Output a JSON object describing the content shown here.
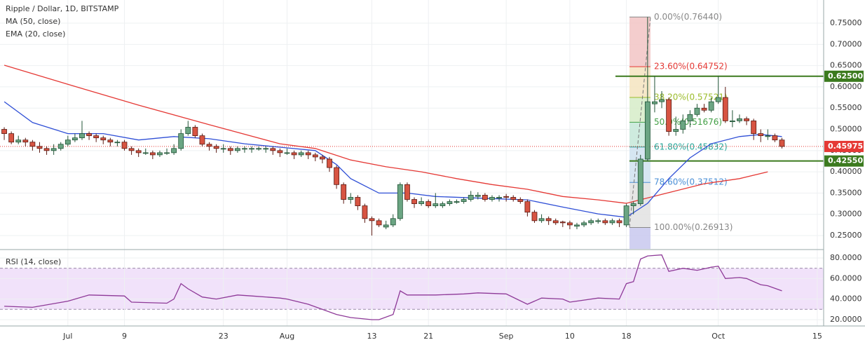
{
  "chart_data": {
    "type": "candlestick",
    "title": "Ripple / Dollar, 1D, BITSTAMP",
    "up_color": "#6ba583",
    "down_color": "#d75442",
    "xlim": [
      -9.6,
      106.9
    ],
    "xticks": [
      {
        "value": 0,
        "label": "Jul"
      },
      {
        "value": 8,
        "label": "9"
      },
      {
        "value": 22,
        "label": "23"
      },
      {
        "value": 31,
        "label": "Aug"
      },
      {
        "value": 43,
        "label": "13"
      },
      {
        "value": 51,
        "label": "21"
      },
      {
        "value": 62,
        "label": "Sep"
      },
      {
        "value": 71,
        "label": "10"
      },
      {
        "value": 79,
        "label": "18"
      },
      {
        "value": 92,
        "label": "Oct"
      },
      {
        "value": 106,
        "label": "15"
      }
    ],
    "ylim": [
      0.2187,
      0.8045
    ],
    "yticks": [
      {
        "value": 0.25,
        "label": "0.25000"
      },
      {
        "value": 0.3,
        "label": "0.30000"
      },
      {
        "value": 0.35,
        "label": "0.35000"
      },
      {
        "value": 0.4,
        "label": "0.40000"
      },
      {
        "value": 0.45,
        "label": "0.45000"
      },
      {
        "value": 0.5,
        "label": "0.50000"
      },
      {
        "value": 0.55,
        "label": "0.55000"
      },
      {
        "value": 0.6,
        "label": "0.60000"
      },
      {
        "value": 0.65,
        "label": "0.65000"
      },
      {
        "value": 0.7,
        "label": "0.70000"
      },
      {
        "value": 0.75,
        "label": "0.75000"
      }
    ],
    "x": [
      -9,
      -8,
      -7,
      -6,
      -5,
      -4,
      -3,
      -2,
      -1,
      0,
      1,
      2,
      3,
      4,
      5,
      6,
      7,
      8,
      9,
      10,
      11,
      12,
      13,
      14,
      15,
      16,
      17,
      18,
      19,
      20,
      21,
      22,
      23,
      24,
      25,
      26,
      27,
      28,
      29,
      30,
      31,
      32,
      33,
      34,
      35,
      36,
      37,
      38,
      39,
      40,
      41,
      42,
      43,
      44,
      45,
      46,
      47,
      48,
      49,
      50,
      51,
      52,
      53,
      54,
      55,
      56,
      57,
      58,
      59,
      60,
      61,
      62,
      63,
      64,
      65,
      66,
      67,
      68,
      69,
      70,
      71,
      72,
      73,
      74,
      75,
      76,
      77,
      78,
      79,
      80,
      81,
      82,
      83,
      84,
      85,
      86,
      87,
      88,
      89,
      90,
      91,
      92,
      93,
      94,
      95,
      96,
      97,
      98,
      99,
      100,
      101
    ],
    "ohlc": [
      [
        0.5,
        0.505,
        0.475,
        0.49
      ],
      [
        0.49,
        0.495,
        0.465,
        0.47
      ],
      [
        0.47,
        0.485,
        0.465,
        0.475
      ],
      [
        0.475,
        0.48,
        0.46,
        0.47
      ],
      [
        0.47,
        0.475,
        0.45,
        0.46
      ],
      [
        0.46,
        0.47,
        0.445,
        0.455
      ],
      [
        0.455,
        0.46,
        0.44,
        0.45
      ],
      [
        0.45,
        0.465,
        0.44,
        0.455
      ],
      [
        0.455,
        0.47,
        0.45,
        0.465
      ],
      [
        0.465,
        0.485,
        0.46,
        0.475
      ],
      [
        0.475,
        0.49,
        0.47,
        0.48
      ],
      [
        0.48,
        0.52,
        0.475,
        0.49
      ],
      [
        0.49,
        0.495,
        0.475,
        0.485
      ],
      [
        0.485,
        0.49,
        0.47,
        0.48
      ],
      [
        0.48,
        0.485,
        0.465,
        0.475
      ],
      [
        0.475,
        0.48,
        0.46,
        0.47
      ],
      [
        0.47,
        0.475,
        0.46,
        0.47
      ],
      [
        0.47,
        0.475,
        0.45,
        0.455
      ],
      [
        0.455,
        0.46,
        0.44,
        0.45
      ],
      [
        0.45,
        0.455,
        0.435,
        0.445
      ],
      [
        0.445,
        0.455,
        0.44,
        0.445
      ],
      [
        0.445,
        0.45,
        0.43,
        0.44
      ],
      [
        0.44,
        0.45,
        0.435,
        0.445
      ],
      [
        0.445,
        0.455,
        0.44,
        0.445
      ],
      [
        0.445,
        0.465,
        0.44,
        0.455
      ],
      [
        0.455,
        0.5,
        0.45,
        0.49
      ],
      [
        0.49,
        0.52,
        0.485,
        0.505
      ],
      [
        0.505,
        0.51,
        0.48,
        0.485
      ],
      [
        0.485,
        0.49,
        0.46,
        0.465
      ],
      [
        0.465,
        0.47,
        0.45,
        0.46
      ],
      [
        0.46,
        0.465,
        0.445,
        0.455
      ],
      [
        0.455,
        0.465,
        0.445,
        0.455
      ],
      [
        0.455,
        0.46,
        0.44,
        0.45
      ],
      [
        0.45,
        0.46,
        0.445,
        0.455
      ],
      [
        0.455,
        0.46,
        0.445,
        0.455
      ],
      [
        0.455,
        0.46,
        0.445,
        0.455
      ],
      [
        0.455,
        0.46,
        0.45,
        0.455
      ],
      [
        0.455,
        0.46,
        0.445,
        0.455
      ],
      [
        0.455,
        0.46,
        0.44,
        0.45
      ],
      [
        0.45,
        0.455,
        0.435,
        0.445
      ],
      [
        0.445,
        0.455,
        0.44,
        0.445
      ],
      [
        0.445,
        0.45,
        0.43,
        0.44
      ],
      [
        0.44,
        0.45,
        0.435,
        0.445
      ],
      [
        0.445,
        0.45,
        0.43,
        0.44
      ],
      [
        0.44,
        0.445,
        0.425,
        0.435
      ],
      [
        0.435,
        0.44,
        0.42,
        0.43
      ],
      [
        0.43,
        0.435,
        0.4,
        0.41
      ],
      [
        0.41,
        0.415,
        0.36,
        0.37
      ],
      [
        0.37,
        0.375,
        0.325,
        0.335
      ],
      [
        0.335,
        0.35,
        0.325,
        0.34
      ],
      [
        0.34,
        0.345,
        0.31,
        0.32
      ],
      [
        0.32,
        0.325,
        0.28,
        0.29
      ],
      [
        0.29,
        0.295,
        0.25,
        0.285
      ],
      [
        0.285,
        0.29,
        0.27,
        0.275
      ],
      [
        0.27,
        0.285,
        0.265,
        0.275
      ],
      [
        0.275,
        0.3,
        0.27,
        0.29
      ],
      [
        0.29,
        0.375,
        0.285,
        0.37
      ],
      [
        0.37,
        0.375,
        0.33,
        0.335
      ],
      [
        0.335,
        0.34,
        0.315,
        0.325
      ],
      [
        0.325,
        0.34,
        0.32,
        0.33
      ],
      [
        0.33,
        0.335,
        0.315,
        0.32
      ],
      [
        0.32,
        0.35,
        0.315,
        0.325
      ],
      [
        0.32,
        0.33,
        0.315,
        0.325
      ],
      [
        0.325,
        0.335,
        0.32,
        0.33
      ],
      [
        0.328,
        0.335,
        0.325,
        0.33
      ],
      [
        0.33,
        0.34,
        0.325,
        0.335
      ],
      [
        0.335,
        0.355,
        0.33,
        0.345
      ],
      [
        0.342,
        0.352,
        0.335,
        0.345
      ],
      [
        0.345,
        0.35,
        0.33,
        0.335
      ],
      [
        0.335,
        0.345,
        0.33,
        0.34
      ],
      [
        0.338,
        0.345,
        0.33,
        0.34
      ],
      [
        0.342,
        0.348,
        0.33,
        0.34
      ],
      [
        0.34,
        0.345,
        0.33,
        0.335
      ],
      [
        0.335,
        0.34,
        0.325,
        0.33
      ],
      [
        0.33,
        0.335,
        0.295,
        0.305
      ],
      [
        0.305,
        0.31,
        0.28,
        0.285
      ],
      [
        0.285,
        0.3,
        0.28,
        0.29
      ],
      [
        0.29,
        0.295,
        0.275,
        0.285
      ],
      [
        0.285,
        0.29,
        0.275,
        0.28
      ],
      [
        0.282,
        0.285,
        0.27,
        0.28
      ],
      [
        0.28,
        0.285,
        0.265,
        0.275
      ],
      [
        0.272,
        0.28,
        0.265,
        0.275
      ],
      [
        0.275,
        0.285,
        0.27,
        0.28
      ],
      [
        0.28,
        0.29,
        0.275,
        0.285
      ],
      [
        0.283,
        0.29,
        0.278,
        0.285
      ],
      [
        0.285,
        0.29,
        0.275,
        0.28
      ],
      [
        0.28,
        0.29,
        0.275,
        0.285
      ],
      [
        0.285,
        0.29,
        0.27,
        0.28
      ],
      [
        0.275,
        0.325,
        0.27,
        0.32
      ],
      [
        0.32,
        0.33,
        0.3,
        0.325
      ],
      [
        0.325,
        0.44,
        0.32,
        0.43
      ],
      [
        0.43,
        0.7644,
        0.425,
        0.565
      ],
      [
        0.56,
        0.625,
        0.54,
        0.565
      ],
      [
        0.565,
        0.59,
        0.55,
        0.57
      ],
      [
        0.57,
        0.575,
        0.485,
        0.495
      ],
      [
        0.495,
        0.53,
        0.485,
        0.5
      ],
      [
        0.5,
        0.535,
        0.49,
        0.52
      ],
      [
        0.52,
        0.545,
        0.505,
        0.535
      ],
      [
        0.535,
        0.56,
        0.53,
        0.55
      ],
      [
        0.55,
        0.56,
        0.54,
        0.545
      ],
      [
        0.545,
        0.575,
        0.54,
        0.565
      ],
      [
        0.565,
        0.625,
        0.56,
        0.575
      ],
      [
        0.575,
        0.6,
        0.515,
        0.52
      ],
      [
        0.518,
        0.545,
        0.505,
        0.52
      ],
      [
        0.52,
        0.535,
        0.515,
        0.525
      ],
      [
        0.525,
        0.53,
        0.51,
        0.52
      ],
      [
        0.52,
        0.525,
        0.475,
        0.49
      ],
      [
        0.49,
        0.5,
        0.47,
        0.485
      ],
      [
        0.483,
        0.5,
        0.475,
        0.485
      ],
      [
        0.485,
        0.49,
        0.47,
        0.475
      ],
      [
        0.475,
        0.48,
        0.455,
        0.45975
      ]
    ],
    "lines": [
      {
        "name": "MA (50, close)",
        "color": "#e53935",
        "x": [
          -9,
          0,
          10,
          20,
          30,
          35,
          40,
          45,
          50,
          55,
          60,
          65,
          70,
          75,
          79,
          85,
          90,
          95,
          99
        ],
        "values": [
          0.651,
          0.606,
          0.557,
          0.511,
          0.466,
          0.455,
          0.428,
          0.412,
          0.4,
          0.384,
          0.37,
          0.359,
          0.342,
          0.334,
          0.326,
          0.351,
          0.372,
          0.384,
          0.4
        ]
      },
      {
        "name": "EMA (20, close)",
        "color": "#2f4fd6",
        "x": [
          -9,
          -5,
          0,
          5,
          10,
          15,
          20,
          25,
          30,
          35,
          38,
          40,
          44,
          48,
          52,
          60,
          65,
          70,
          75,
          79,
          82,
          85,
          88,
          91,
          95,
          98,
          101
        ],
        "values": [
          0.565,
          0.516,
          0.49,
          0.49,
          0.475,
          0.483,
          0.478,
          0.466,
          0.458,
          0.45,
          0.417,
          0.384,
          0.35,
          0.35,
          0.342,
          0.337,
          0.334,
          0.317,
          0.301,
          0.293,
          0.326,
          0.384,
          0.433,
          0.466,
          0.483,
          0.488,
          0.483
        ]
      }
    ],
    "fib": [
      {
        "label": "0.00%(0.76440)",
        "value": 0.7644,
        "color": "#888888",
        "band": "#f2c4c4"
      },
      {
        "label": "23.60%(0.64752)",
        "value": 0.64752,
        "color": "#e53935",
        "band": "#f4e4c0"
      },
      {
        "label": "38.20%(0.57521)",
        "value": 0.57521,
        "color": "#9cbc2c",
        "band": "#d6ecc8"
      },
      {
        "label": "50.0%(0.51676)",
        "value": 0.51676,
        "color": "#43a047",
        "band": "#c6e8d8"
      },
      {
        "label": "61.80%(0.45832)",
        "value": 0.45832,
        "color": "#26a69a",
        "band": "#cfe2f0"
      },
      {
        "label": "78.60%(0.37512)",
        "value": 0.37512,
        "color": "#4a8fd6",
        "band": "#e2e2e2"
      },
      {
        "label": "100.00%(0.26913)",
        "value": 0.26913,
        "color": "#888888",
        "band": "#c8c8ee"
      }
    ],
    "levels": [
      {
        "label": "0.62500",
        "value": 0.625,
        "color": "#3b7a1e"
      },
      {
        "label": "0.42550",
        "value": 0.4255,
        "color": "#3b7a1e"
      }
    ],
    "last": {
      "label": "0.45975",
      "value": 0.45975,
      "color": "#e53935"
    },
    "rsi": {
      "name": "RSI (14, close)",
      "color": "#8e3a98",
      "band": [
        30,
        70
      ],
      "band_color": "#f1e2fa",
      "ylim": [
        15.2,
        87.5
      ],
      "yticks": [
        {
          "value": 20,
          "label": "20.0000"
        },
        {
          "value": 40,
          "label": "40.0000"
        },
        {
          "value": 60,
          "label": "60.0000"
        },
        {
          "value": 80,
          "label": "80.0000"
        }
      ],
      "x": [
        -9,
        -5,
        0,
        3,
        8,
        9,
        14,
        15,
        16,
        17,
        19,
        21,
        24,
        26,
        30,
        31,
        34,
        38,
        40,
        43,
        44,
        46,
        47,
        48,
        52,
        56,
        58,
        62,
        65,
        67,
        70,
        71,
        75,
        78,
        79,
        80,
        81,
        82,
        84,
        85,
        87,
        89,
        91,
        92,
        93,
        95,
        96,
        98,
        99,
        101
      ],
      "values": [
        33,
        32,
        38,
        44,
        43,
        37,
        36,
        40,
        55,
        50,
        42,
        40,
        44,
        43,
        41,
        40,
        35,
        25,
        22,
        20,
        20,
        25,
        48,
        44,
        44,
        45,
        46,
        45,
        35,
        41,
        40,
        37,
        41,
        40,
        55,
        57,
        79,
        82,
        83,
        67,
        70,
        68,
        71,
        72,
        60,
        61,
        60,
        54,
        53,
        48
      ]
    }
  }
}
